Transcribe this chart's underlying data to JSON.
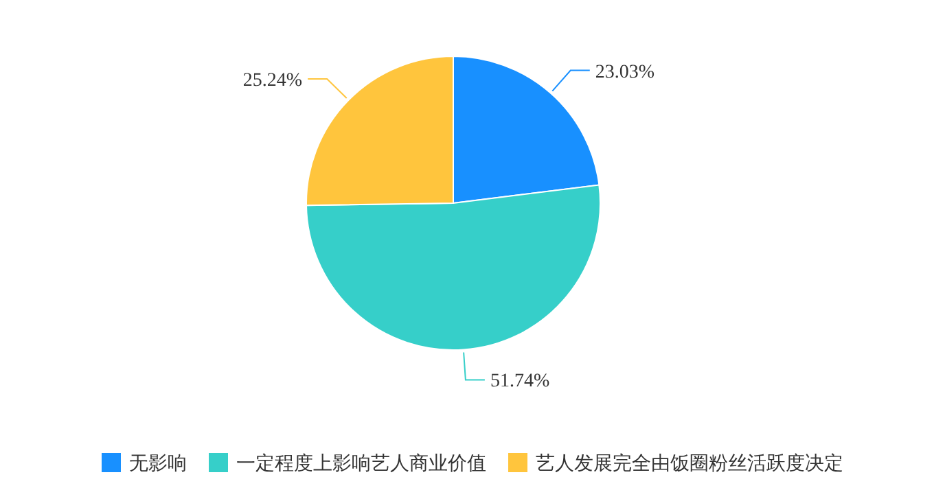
{
  "chart_data": {
    "type": "pie",
    "categories": [
      "无影响",
      "一定程度上影响艺人商业价值",
      "艺人发展完全由饭圈粉丝活跃度决定"
    ],
    "values": [
      23.03,
      51.74,
      25.24
    ],
    "value_labels": [
      "23.03%",
      "51.74%",
      "25.24%"
    ],
    "colors": [
      "#1890ff",
      "#36cfc9",
      "#ffc53d"
    ],
    "legend": "bottom"
  }
}
